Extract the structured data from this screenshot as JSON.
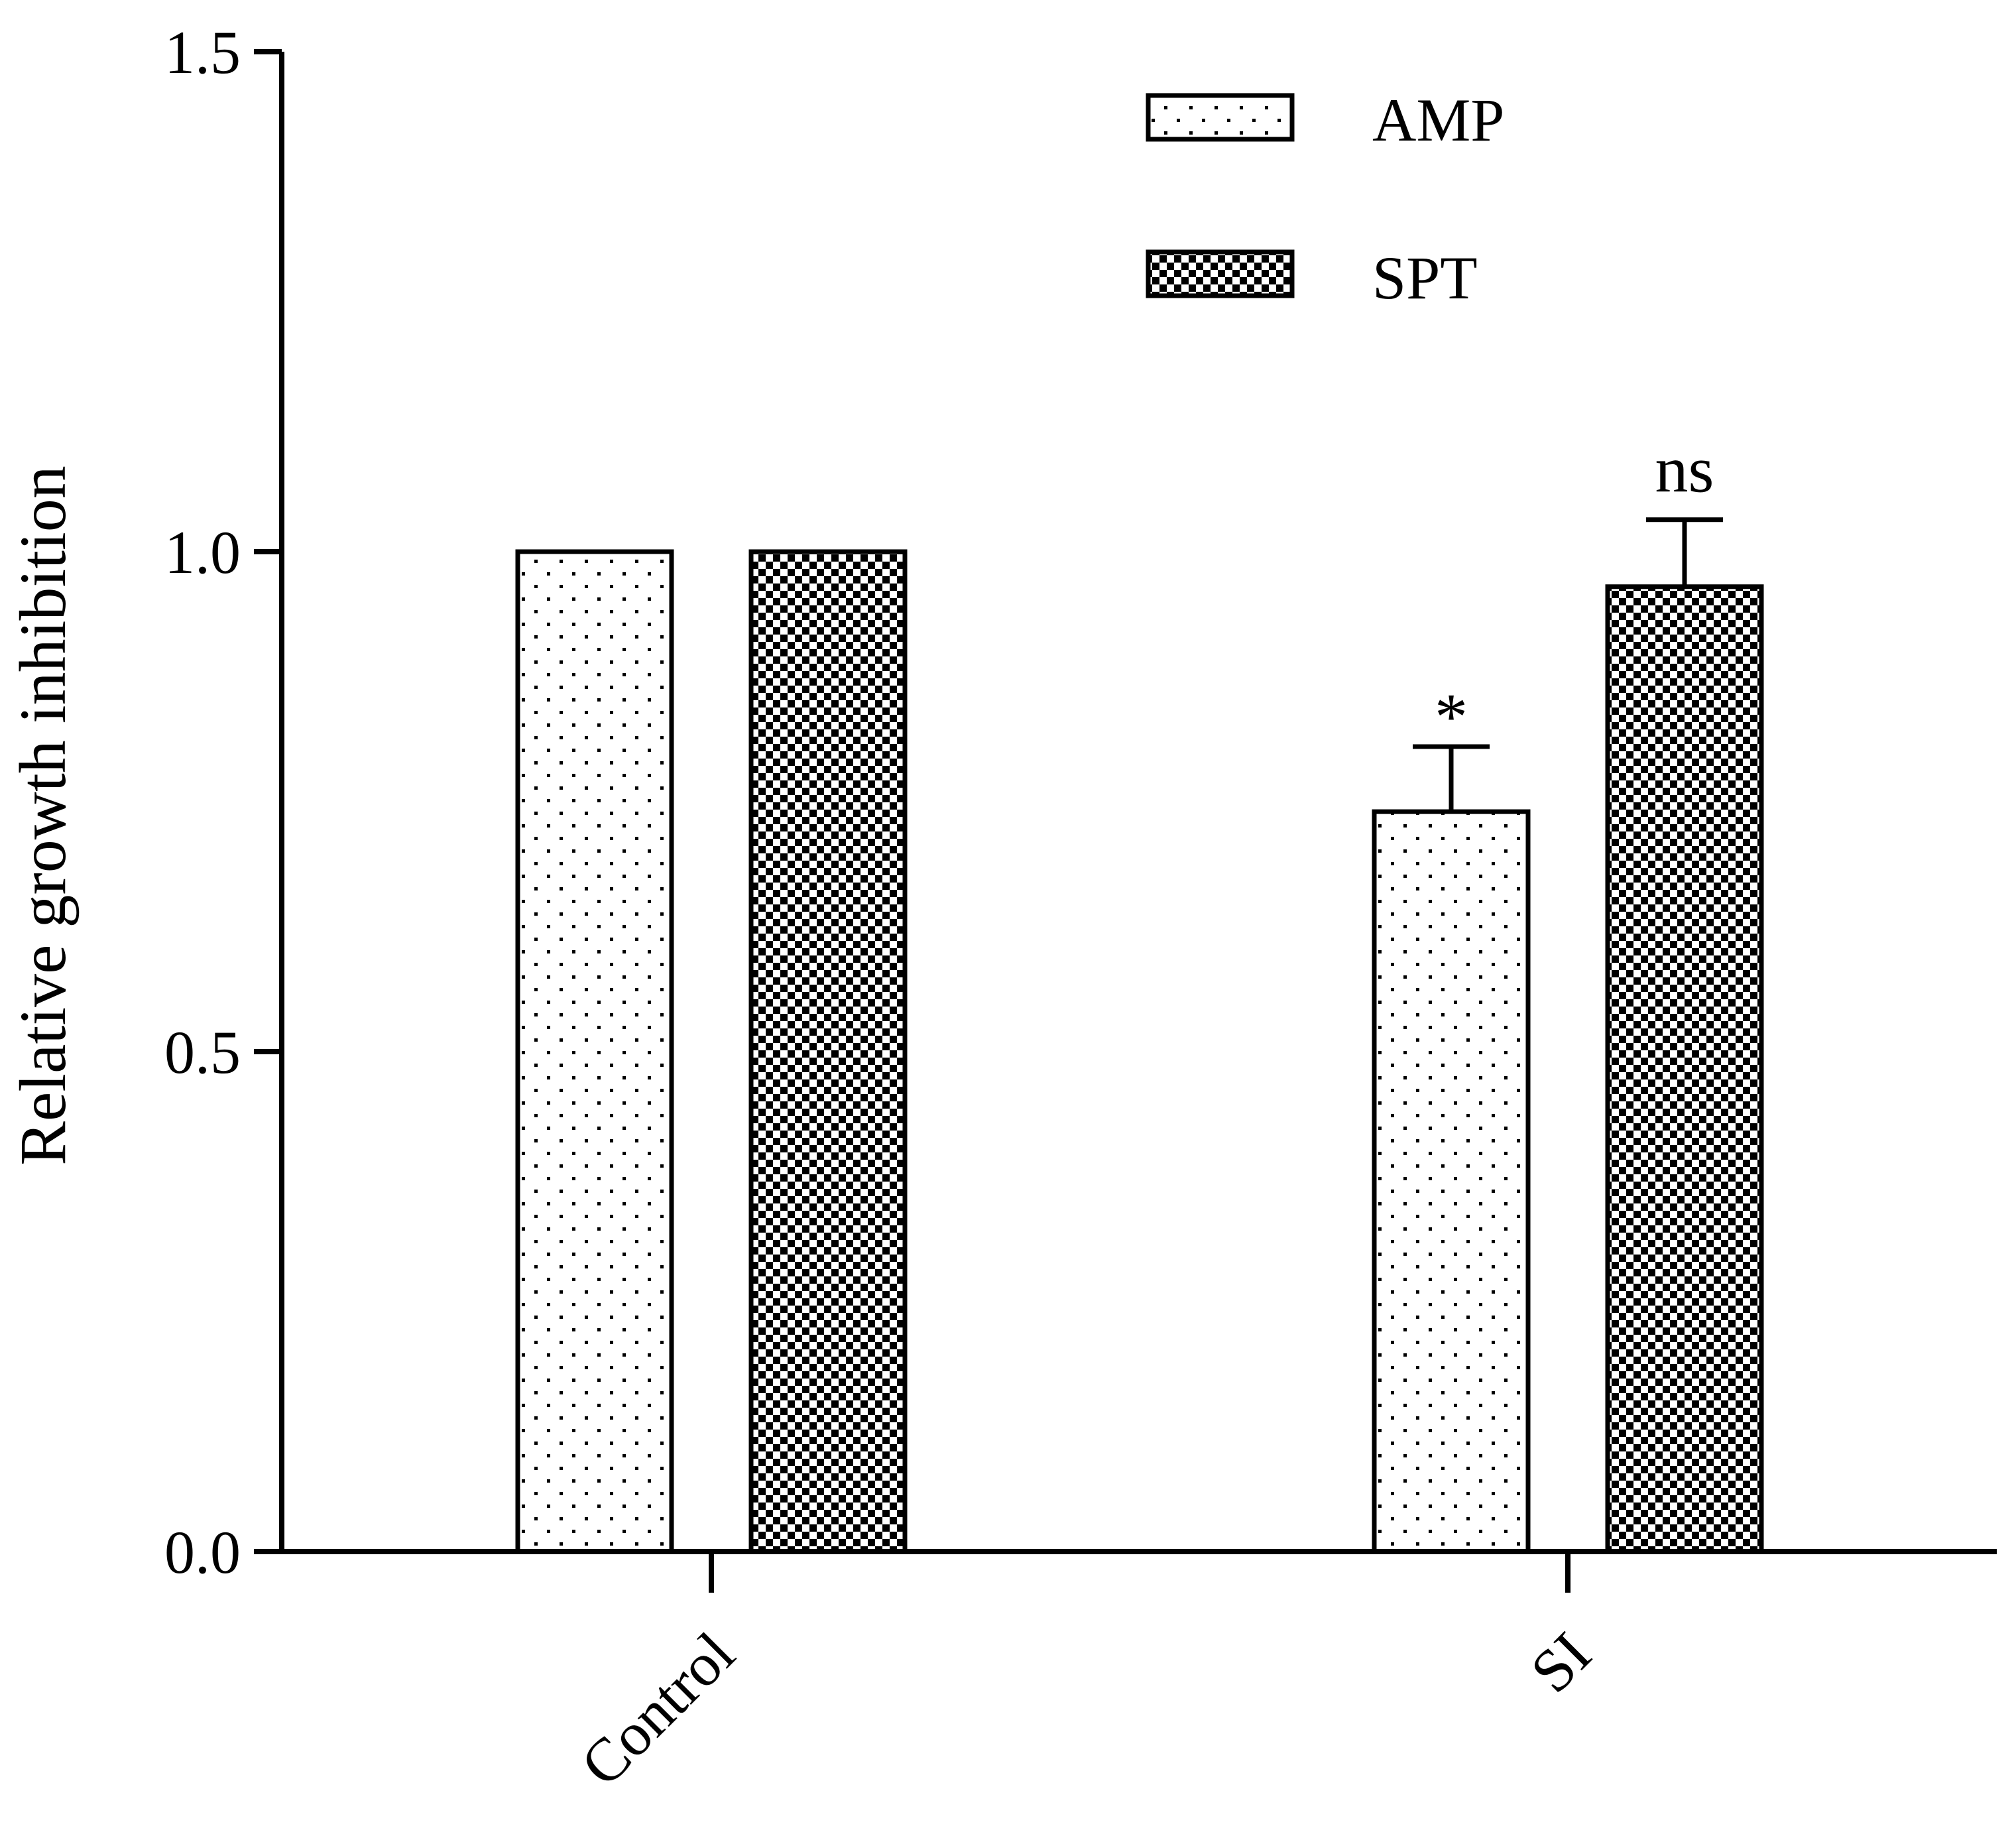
{
  "chart_data": {
    "type": "bar",
    "ylabel": "Relative growth inhibition",
    "ylim": [
      0,
      1.5
    ],
    "yticks": [
      "0.0",
      "0.5",
      "1.0",
      "1.5"
    ],
    "categories": [
      "Control",
      "SI"
    ],
    "series": [
      {
        "name": "AMP",
        "values": [
          1.0,
          0.74
        ],
        "errors": [
          0,
          0.065
        ],
        "annotations": [
          "",
          "*"
        ],
        "pattern": "dots"
      },
      {
        "name": "SPT",
        "values": [
          1.0,
          0.965
        ],
        "errors": [
          0,
          0.067
        ],
        "annotations": [
          "",
          "ns"
        ],
        "pattern": "checker"
      }
    ],
    "legend_position": "top-right",
    "grid": false
  }
}
